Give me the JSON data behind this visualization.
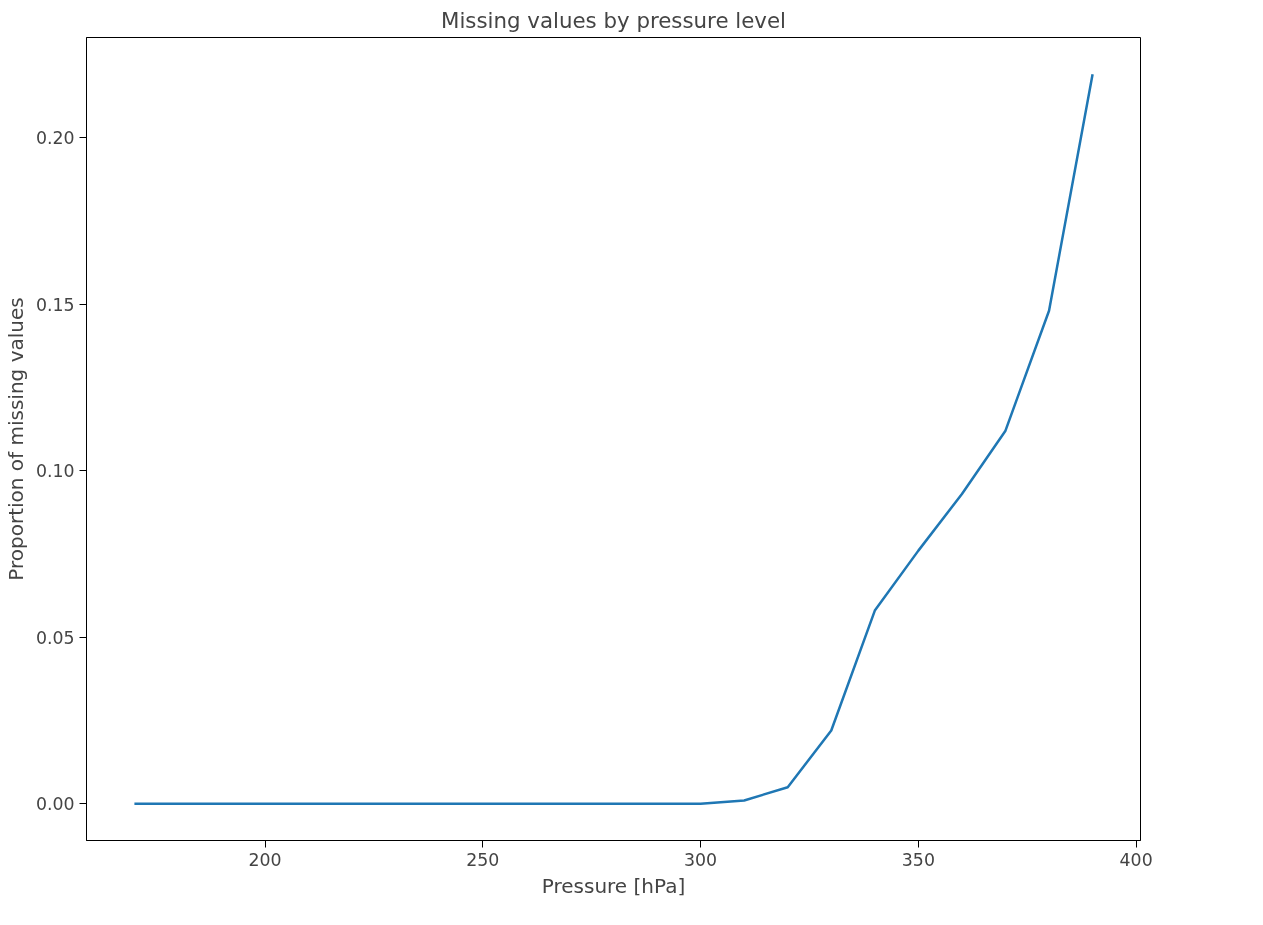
{
  "chart_data": {
    "type": "line",
    "title": "Missing values by pressure level",
    "xlabel": "Pressure [hPa]",
    "ylabel": "Proportion of missing values",
    "x": [
      170,
      180,
      190,
      200,
      210,
      220,
      230,
      240,
      250,
      260,
      270,
      280,
      290,
      300,
      310,
      320,
      330,
      340,
      350,
      360,
      370,
      380,
      390
    ],
    "series": [
      {
        "color": "#1f77b4",
        "values": [
          0,
          0,
          0,
          0,
          0,
          0,
          0,
          0,
          0,
          0,
          0,
          0,
          0,
          0,
          0.001,
          0.005,
          0.022,
          0.058,
          0.076,
          0.093,
          0.112,
          0.148,
          0.219
        ]
      }
    ],
    "xlim": [
      159,
      401
    ],
    "ylim": [
      -0.011,
      0.23
    ],
    "xticks": [
      200,
      250,
      300,
      350,
      400
    ],
    "yticks": [
      {
        "value": 0,
        "label": "0.00"
      },
      {
        "value": 0.05,
        "label": "0.05"
      },
      {
        "value": 0.1,
        "label": "0.10"
      },
      {
        "value": 0.15,
        "label": "0.15"
      },
      {
        "value": 0.2,
        "label": "0.20"
      }
    ],
    "grid": false
  }
}
